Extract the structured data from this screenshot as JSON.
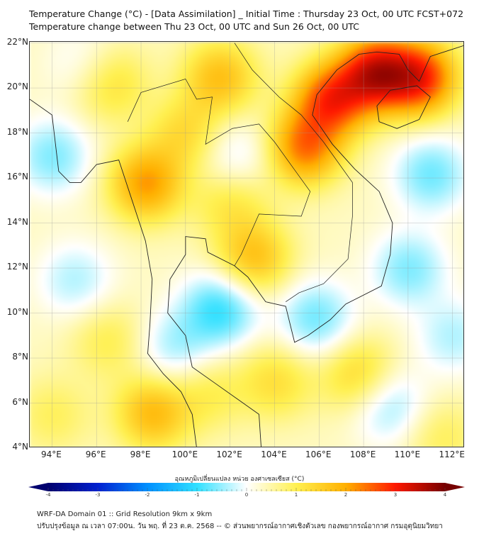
{
  "header": {
    "title": "Temperature Change (°C) - [Data Assimilation] _ Initial Time : Thursday 23 Oct, 00 UTC FCST+072",
    "subtitle": "Temperature change between Thu 23 Oct, 00 UTC and Sun 26 Oct, 00 UTC"
  },
  "chart_data": {
    "type": "heatmap",
    "lon_range": [
      93,
      112.55
    ],
    "lat_range": [
      4,
      22.05
    ],
    "lon_ticks": [
      "94°E",
      "96°E",
      "98°E",
      "100°E",
      "102°E",
      "104°E",
      "106°E",
      "108°E",
      "110°E",
      "112°E"
    ],
    "lat_ticks": [
      "4°N",
      "6°N",
      "8°N",
      "10°N",
      "12°N",
      "14°N",
      "16°N",
      "18°N",
      "20°N",
      "22°N"
    ],
    "field_centers": [
      {
        "lon": 108.5,
        "lat": 20.7,
        "value": 3.6
      },
      {
        "lon": 110.5,
        "lat": 20.5,
        "value": 3.2
      },
      {
        "lon": 106.5,
        "lat": 19.5,
        "value": 3.0
      },
      {
        "lon": 105.3,
        "lat": 17.4,
        "value": 2.6
      },
      {
        "lon": 98.2,
        "lat": 15.8,
        "value": 2.3
      },
      {
        "lon": 101.5,
        "lat": 20.5,
        "value": 1.8
      },
      {
        "lon": 96.5,
        "lat": 20.3,
        "value": 1.4
      },
      {
        "lon": 103,
        "lat": 12.5,
        "value": 1.8
      },
      {
        "lon": 98.5,
        "lat": 5.6,
        "value": 1.9
      },
      {
        "lon": 107.8,
        "lat": 7.2,
        "value": 1.5
      },
      {
        "lon": 104,
        "lat": 7.0,
        "value": 1.2
      },
      {
        "lon": 102,
        "lat": 15,
        "value": 1.1
      },
      {
        "lon": 100,
        "lat": 18,
        "value": 1.3
      },
      {
        "lon": 96.5,
        "lat": 8.8,
        "value": 0.9
      },
      {
        "lon": 94,
        "lat": 5.5,
        "value": 0.8
      },
      {
        "lon": 111.5,
        "lat": 4.5,
        "value": 0.8
      },
      {
        "lon": 101,
        "lat": 6.5,
        "value": 0.9
      },
      {
        "lon": 101.5,
        "lat": 10.2,
        "value": -1.6
      },
      {
        "lon": 94,
        "lat": 17,
        "value": -1.1
      },
      {
        "lon": 95,
        "lat": 11.5,
        "value": -0.8
      },
      {
        "lon": 111,
        "lat": 16.2,
        "value": -1.2
      },
      {
        "lon": 110,
        "lat": 12,
        "value": -1.1
      },
      {
        "lon": 109,
        "lat": 6,
        "value": -1.1
      },
      {
        "lon": 102.2,
        "lat": 17,
        "value": -0.7
      },
      {
        "lon": 105.8,
        "lat": 9.8,
        "value": -1.2
      },
      {
        "lon": 95.5,
        "lat": 21,
        "value": -0.6
      },
      {
        "lon": 99.5,
        "lat": 8.5,
        "value": -0.9
      },
      {
        "lon": 112,
        "lat": 9,
        "value": -0.8
      }
    ],
    "colorbar": {
      "label": "อุณหภูมิเปลี่ยนแปลง หน่วย องศาเซลเซียส (°C)",
      "ticks": [
        "-4",
        "-3",
        "-2",
        "-1",
        "0",
        "1",
        "2",
        "3",
        "4"
      ],
      "range": [
        -4,
        4
      ],
      "colors": [
        "#00006e",
        "#0020d0",
        "#0090ff",
        "#30e0ff",
        "#ffffff",
        "#fff050",
        "#ffb000",
        "#ff1800",
        "#760000"
      ]
    }
  },
  "footer": {
    "line1": "WRF-DA Domain 01 :: Grid Resolution 9km x 9km",
    "line2": "ปรับปรุงข้อมูล ณ เวลา 07:00น. วัน พฤ. ที่ 23 ต.ค. 2568 -- © ส่วนพยากรณ์อากาศเชิงตัวเลข กองพยากรณ์อากาศ กรมอุตุนิยมวิทยา"
  }
}
